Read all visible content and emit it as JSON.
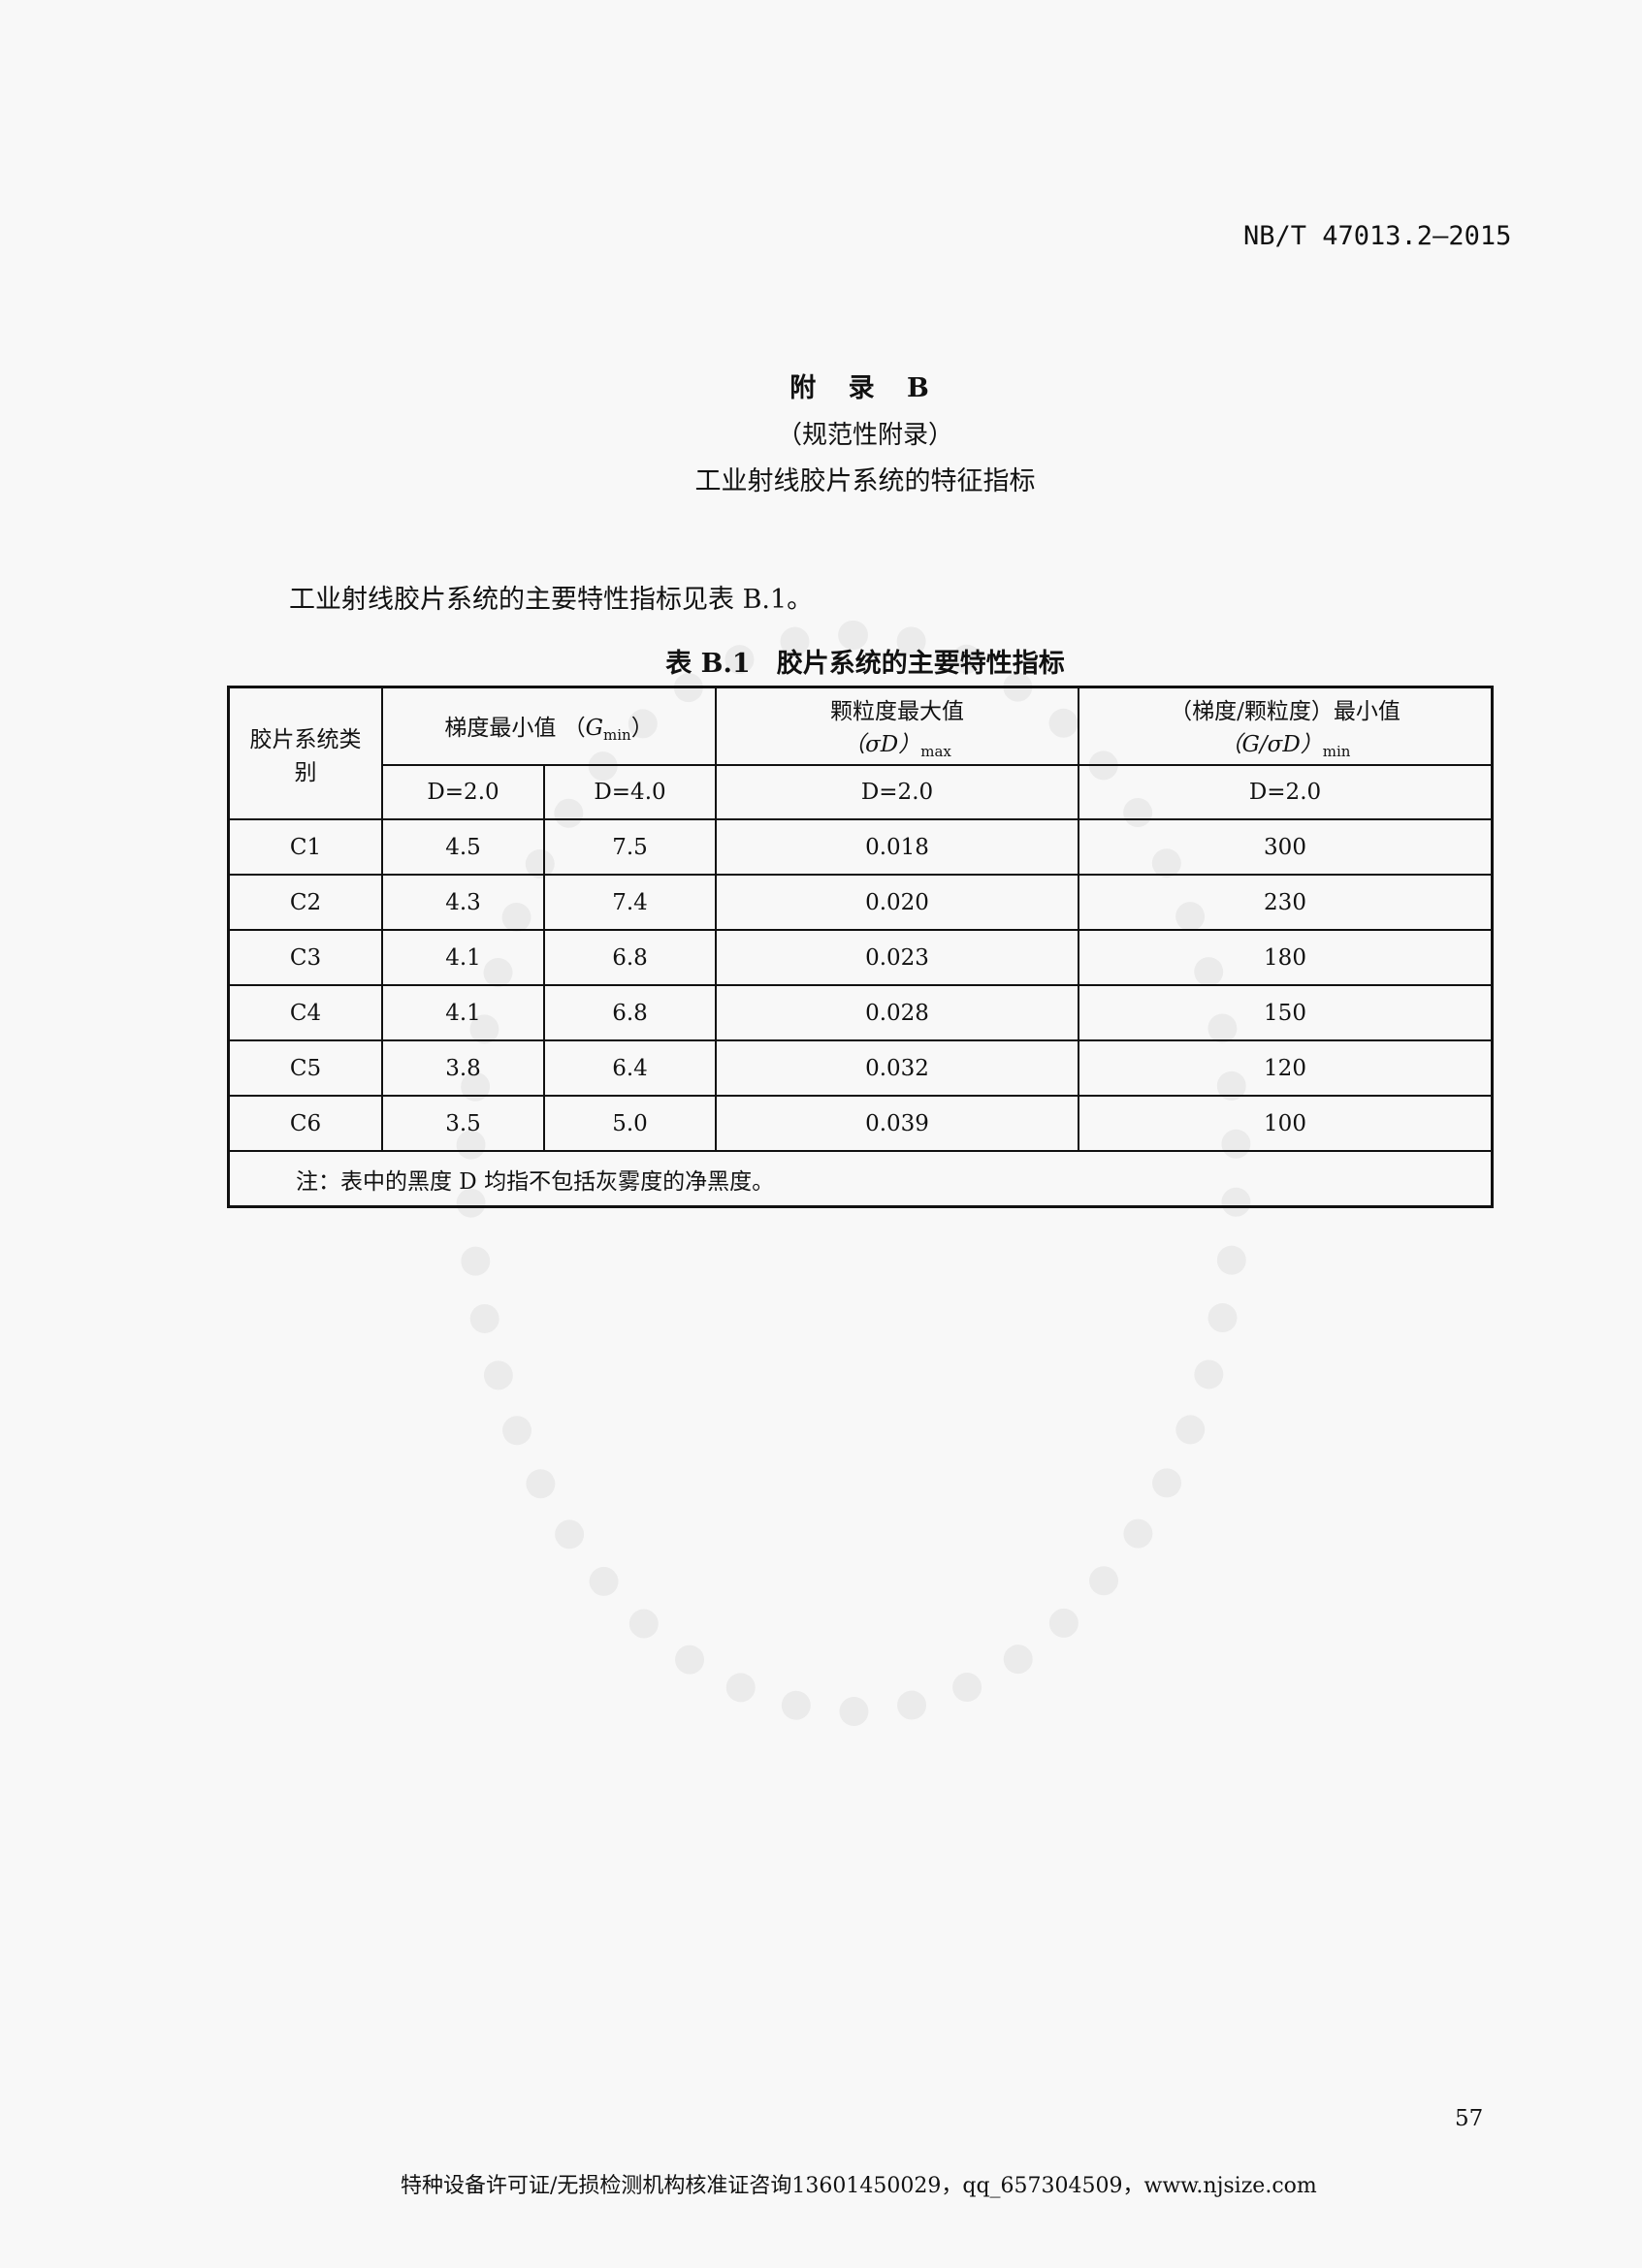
{
  "header": {
    "standard_number": "NB/T 47013.2—2015"
  },
  "appendix": {
    "label": "附 录 B",
    "type": "（规范性附录）",
    "title": "工业射线胶片系统的特征指标"
  },
  "intro_text": "工业射线胶片系统的主要特性指标见表 B.1。",
  "table": {
    "caption": "表 B.1　胶片系统的主要特性指标",
    "headers": {
      "category": "胶片系统类别",
      "gradient_min": "梯度最小值 （",
      "gradient_sym": "G",
      "gradient_sub": "min",
      "gradient_close": "）",
      "granularity_max": "颗粒度最大值",
      "granularity_sym": "（σD）",
      "granularity_sub": "max",
      "ratio_min": "（梯度/颗粒度）最小值",
      "ratio_sym": "（G/σD）",
      "ratio_sub": "min",
      "d20": "D=2.0",
      "d40": "D=4.0"
    },
    "rows": [
      {
        "cls": "C1",
        "g2": "4.5",
        "g4": "7.5",
        "s": "0.018",
        "r": "300"
      },
      {
        "cls": "C2",
        "g2": "4.3",
        "g4": "7.4",
        "s": "0.020",
        "r": "230"
      },
      {
        "cls": "C3",
        "g2": "4.1",
        "g4": "6.8",
        "s": "0.023",
        "r": "180"
      },
      {
        "cls": "C4",
        "g2": "4.1",
        "g4": "6.8",
        "s": "0.028",
        "r": "150"
      },
      {
        "cls": "C5",
        "g2": "3.8",
        "g4": "6.4",
        "s": "0.032",
        "r": "120"
      },
      {
        "cls": "C6",
        "g2": "3.5",
        "g4": "5.0",
        "s": "0.039",
        "r": "100"
      }
    ],
    "note": "注：表中的黑度 D 均指不包括灰雾度的净黑度。"
  },
  "page_number": "57",
  "footer": "特种设备许可证/无损检测机构核准证咨询13601450029，qq_657304509，www.njsize.com"
}
